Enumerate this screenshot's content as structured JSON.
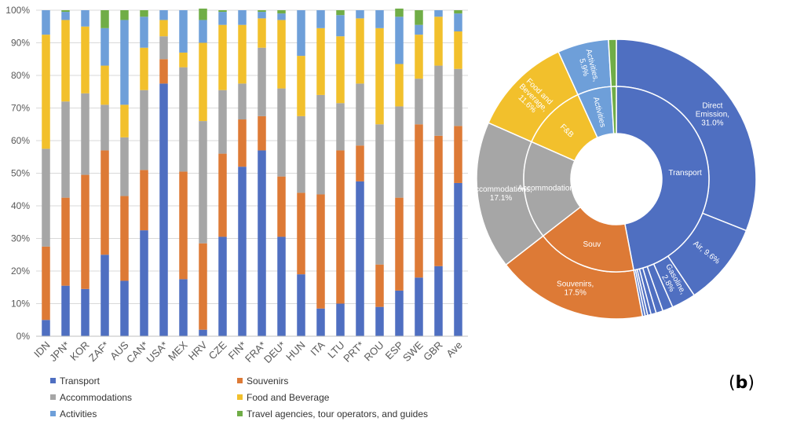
{
  "chart_data": [
    {
      "type": "bar",
      "stacked": true,
      "title": "",
      "xlabel": "",
      "ylabel": "",
      "ylim": [
        0,
        100
      ],
      "yticks": [
        "0%",
        "10%",
        "20%",
        "30%",
        "40%",
        "50%",
        "60%",
        "70%",
        "80%",
        "90%",
        "100%"
      ],
      "grid": true,
      "legend_position": "bottom",
      "categories": [
        "IDN",
        "JPN*",
        "KOR",
        "ZAF*",
        "AUS",
        "CAN*",
        "USA*",
        "MEX",
        "HRV",
        "CZE",
        "FIN*",
        "FRA*",
        "DEU*",
        "HUN",
        "ITA",
        "LTU",
        "PRT*",
        "ROU",
        "ESP",
        "SWE",
        "GBR",
        "Ave"
      ],
      "series": [
        {
          "name": "Transport",
          "color": "#4f6fc1",
          "values": [
            5,
            15.5,
            14.5,
            25,
            17,
            32.5,
            77.5,
            17.5,
            2,
            30.5,
            52,
            57,
            30.5,
            19,
            8.5,
            10,
            47.5,
            9,
            14,
            18,
            21.5,
            47
          ]
        },
        {
          "name": "Souvenirs",
          "color": "#dd7a36",
          "values": [
            22.5,
            27,
            35,
            32,
            26,
            18.5,
            7.5,
            33,
            26.5,
            25.5,
            14.5,
            10.5,
            18.5,
            25,
            35,
            47,
            11,
            13,
            28.5,
            47,
            40,
            17.5
          ]
        },
        {
          "name": "Accommodations",
          "color": "#a6a6a6",
          "values": [
            30,
            29.5,
            25,
            14,
            18,
            24.5,
            7,
            32,
            37.5,
            19.5,
            11,
            21,
            27,
            23.5,
            30.5,
            14.5,
            19,
            43,
            28,
            14,
            21.5,
            17.5
          ]
        },
        {
          "name": "Food and Beverage",
          "color": "#f2c02c",
          "values": [
            35,
            25,
            20.5,
            12,
            10,
            13,
            5,
            4.5,
            24,
            20,
            18,
            9,
            21,
            18.5,
            20.5,
            20.5,
            20,
            29.5,
            13,
            13.5,
            15,
            11.5
          ]
        },
        {
          "name": "Activities",
          "color": "#6e9fd9",
          "values": [
            7.5,
            2.5,
            5,
            11.5,
            26,
            9.5,
            3,
            13,
            7,
            4,
            4.5,
            2,
            2,
            14,
            5.5,
            6.5,
            2.5,
            5.5,
            14.5,
            3,
            2,
            5.5
          ]
        },
        {
          "name": "Travel agencies, tour operators, and guides",
          "color": "#70ad47",
          "values": [
            0,
            0.5,
            0,
            5.5,
            3,
            2,
            0,
            0,
            3.5,
            0.5,
            0,
            0.5,
            1,
            0,
            0,
            1.5,
            0,
            0,
            2.5,
            4.5,
            0,
            1
          ]
        }
      ]
    },
    {
      "type": "pie",
      "subtype": "sunburst",
      "inner_ring": [
        {
          "label": "Transport",
          "value": 47.0,
          "color": "#4f6fc1"
        },
        {
          "label": "Souv",
          "value": 17.5,
          "color": "#dd7a36"
        },
        {
          "label": "Accommodations",
          "value": 17.1,
          "color": "#a6a6a6"
        },
        {
          "label": "F&B",
          "value": 11.6,
          "color": "#f2c02c"
        },
        {
          "label": "Activities",
          "value": 5.9,
          "color": "#6e9fd9"
        },
        {
          "label": "",
          "value": 0.9,
          "color": "#70ad47"
        }
      ],
      "outer_ring": [
        {
          "label": "Direct Emission, 31.0%",
          "value": 31.0,
          "color": "#4f6fc1"
        },
        {
          "label": "Air, 9.6%",
          "value": 9.6,
          "color": "#4f6fc1"
        },
        {
          "label": "Gasoline, 2.8%",
          "value": 2.8,
          "color": "#4f6fc1"
        },
        {
          "label": "",
          "value": 1.2,
          "color": "#4f6fc1"
        },
        {
          "label": "",
          "value": 0.8,
          "color": "#4f6fc1"
        },
        {
          "label": "",
          "value": 0.6,
          "color": "#4f6fc1"
        },
        {
          "label": "",
          "value": 0.4,
          "color": "#4f6fc1"
        },
        {
          "label": "",
          "value": 0.3,
          "color": "#4f6fc1"
        },
        {
          "label": "",
          "value": 0.3,
          "color": "#4f6fc1"
        },
        {
          "label": "Souvenirs, 17.5%",
          "value": 17.5,
          "color": "#dd7a36"
        },
        {
          "label": "Accommodations, 17.1%",
          "value": 17.1,
          "color": "#a6a6a6"
        },
        {
          "label": "Food and Beverage, 11.6%",
          "value": 11.6,
          "color": "#f2c02c"
        },
        {
          "label": "Activities, 5.9%",
          "value": 5.9,
          "color": "#6e9fd9"
        },
        {
          "label": "",
          "value": 0.9,
          "color": "#70ad47"
        }
      ]
    }
  ],
  "panel_label": {
    "open": "(",
    "letter": "b",
    "close": ")"
  }
}
